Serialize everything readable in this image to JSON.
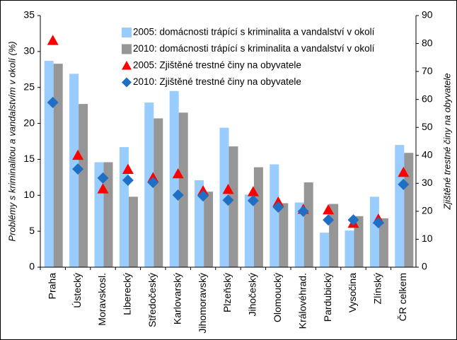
{
  "chart_data": {
    "type": "bar",
    "categories": [
      "Praha",
      "Ústecký",
      "Moravskosl.",
      "Liberecký",
      "Středočeský",
      "Karlovarský",
      "Jihomoravský",
      "Plzeňský",
      "Jihočeský",
      "Olomoucký",
      "Královéhrad.",
      "Pardubický",
      "Vysočina",
      "Zlínský",
      "ČR celkem"
    ],
    "ylabel": "Problémy s kriminalitou a vandalstvím v okolí (%)",
    "y2label": "Zjištěné trestné činy na obyvatele",
    "ylim": [
      0,
      35
    ],
    "yticks": [
      0,
      5,
      10,
      15,
      20,
      25,
      30,
      35
    ],
    "y2lim": [
      0,
      90
    ],
    "y2ticks": [
      0,
      10,
      20,
      30,
      40,
      50,
      60,
      70,
      80,
      90
    ],
    "grid": false,
    "series": [
      {
        "name": "2005: domácnosti trápící s kriminalita a vandalství v okolí",
        "type": "bar",
        "color": "#99ccff",
        "values": [
          28.7,
          26.9,
          14.6,
          16.7,
          22.9,
          24.5,
          12.1,
          19.4,
          10.1,
          14.3,
          9.0,
          4.8,
          5.1,
          9.8,
          17.0
        ]
      },
      {
        "name": "2010: domácnosti trápící s kriminalita a vandalství v okolí",
        "type": "bar",
        "color": "#969696",
        "values": [
          28.3,
          22.7,
          14.6,
          9.8,
          20.7,
          21.5,
          10.5,
          16.8,
          13.9,
          8.9,
          11.8,
          8.8,
          7.1,
          6.8,
          15.9
        ]
      },
      {
        "name": "2005: Zjištěné trestné činy na obyvatele",
        "type": "scatter",
        "marker": "triangle",
        "axis": "y2",
        "color": "#ff0000",
        "values": [
          81.1,
          40,
          28,
          35,
          32,
          33.4,
          27.3,
          27.8,
          27,
          23.3,
          20.7,
          20.5,
          15.7,
          17.2,
          33.9
        ]
      },
      {
        "name": "2010: Zjištěné trestné činy na obyvatele",
        "type": "scatter",
        "marker": "diamond",
        "axis": "y2",
        "color": "#1f6fc4",
        "values": [
          58.9,
          35.1,
          31.9,
          31.1,
          30.3,
          25.8,
          25.5,
          24,
          23.8,
          21.5,
          20,
          16.9,
          16.9,
          15.9,
          29.6
        ]
      }
    ]
  }
}
